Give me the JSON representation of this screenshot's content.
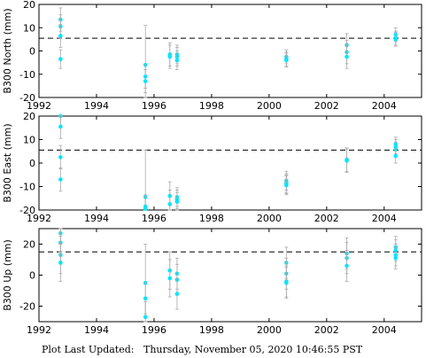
{
  "footer": {
    "label": "Plot Last Updated:",
    "value": "Thursday, November 05, 2020 10:46:55 PST"
  },
  "chart_data": [
    {
      "type": "scatter",
      "ylabel": "B300 North (mm)",
      "xlim": [
        1992,
        2005.3
      ],
      "ylim": [
        -20,
        20
      ],
      "yticks": [
        -20,
        -10,
        0,
        10,
        20
      ],
      "xticks": [
        1992,
        1994,
        1996,
        1998,
        2000,
        2002,
        2004
      ],
      "reference_line": 5.5,
      "grid": false,
      "series": [
        {
          "marker_color": "#00e5ff",
          "errorbar_color": "#aaaaaa",
          "points": [
            {
              "x": 1992.75,
              "y": 13.5,
              "err": 5
            },
            {
              "x": 1992.75,
              "y": 10.5,
              "err": 5
            },
            {
              "x": 1992.75,
              "y": 6.5,
              "err": 5
            },
            {
              "x": 1992.75,
              "y": -3.5,
              "err": 4
            },
            {
              "x": 1995.7,
              "y": -6,
              "err": 17
            },
            {
              "x": 1995.7,
              "y": -11,
              "err": 5
            },
            {
              "x": 1995.7,
              "y": -13,
              "err": 5
            },
            {
              "x": 1996.55,
              "y": -1.5,
              "err": 5
            },
            {
              "x": 1996.55,
              "y": -2.5,
              "err": 5
            },
            {
              "x": 1996.8,
              "y": -1.5,
              "err": 4
            },
            {
              "x": 1996.8,
              "y": -2.5,
              "err": 4
            },
            {
              "x": 1996.8,
              "y": -4,
              "err": 4
            },
            {
              "x": 2000.6,
              "y": -2.5,
              "err": 3
            },
            {
              "x": 2000.6,
              "y": -3.5,
              "err": 3
            },
            {
              "x": 2000.6,
              "y": -4,
              "err": 3
            },
            {
              "x": 2002.7,
              "y": 2.5,
              "err": 5
            },
            {
              "x": 2002.7,
              "y": -0.5,
              "err": 5
            },
            {
              "x": 2002.7,
              "y": -2.5,
              "err": 5
            },
            {
              "x": 2004.4,
              "y": 7,
              "err": 3
            },
            {
              "x": 2004.4,
              "y": 5.5,
              "err": 3
            },
            {
              "x": 2004.4,
              "y": 5,
              "err": 3
            }
          ]
        }
      ]
    },
    {
      "type": "scatter",
      "ylabel": "B300 East (mm)",
      "xlim": [
        1992,
        2005.3
      ],
      "ylim": [
        -20,
        20
      ],
      "yticks": [
        -20,
        -10,
        0,
        10,
        20
      ],
      "xticks": [
        1992,
        1994,
        1996,
        1998,
        2000,
        2002,
        2004
      ],
      "reference_line": 5.5,
      "grid": false,
      "series": [
        {
          "marker_color": "#00e5ff",
          "errorbar_color": "#aaaaaa",
          "points": [
            {
              "x": 1992.75,
              "y": 20,
              "err": 5
            },
            {
              "x": 1992.75,
              "y": 15.5,
              "err": 5
            },
            {
              "x": 1992.75,
              "y": 2.5,
              "err": 5
            },
            {
              "x": 1992.75,
              "y": -7,
              "err": 5
            },
            {
              "x": 1995.7,
              "y": -14.5,
              "err": 20
            },
            {
              "x": 1995.7,
              "y": -18.5,
              "err": 5
            },
            {
              "x": 1995.7,
              "y": -19.5,
              "err": 5
            },
            {
              "x": 1996.55,
              "y": -14,
              "err": 6
            },
            {
              "x": 1996.55,
              "y": -17.5,
              "err": 6
            },
            {
              "x": 1996.8,
              "y": -14.5,
              "err": 4
            },
            {
              "x": 1996.8,
              "y": -15.5,
              "err": 4
            },
            {
              "x": 1996.8,
              "y": -16.5,
              "err": 4
            },
            {
              "x": 2000.6,
              "y": -7.5,
              "err": 4
            },
            {
              "x": 2000.6,
              "y": -8.5,
              "err": 4
            },
            {
              "x": 2000.6,
              "y": -9,
              "err": 4
            },
            {
              "x": 2000.6,
              "y": -9.5,
              "err": 4
            },
            {
              "x": 2002.7,
              "y": 1.5,
              "err": 5
            },
            {
              "x": 2002.7,
              "y": 1,
              "err": 5
            },
            {
              "x": 2004.4,
              "y": 8,
              "err": 3
            },
            {
              "x": 2004.4,
              "y": 7,
              "err": 3
            },
            {
              "x": 2004.4,
              "y": 6,
              "err": 3
            },
            {
              "x": 2004.4,
              "y": 3,
              "err": 3
            }
          ]
        }
      ]
    },
    {
      "type": "scatter",
      "ylabel": "B300 Up (mm)",
      "xlim": [
        1992,
        2005.3
      ],
      "ylim": [
        -30,
        30
      ],
      "yticks": [
        -20,
        0,
        20
      ],
      "xticks": [
        1992,
        1994,
        1996,
        1998,
        2000,
        2002,
        2004
      ],
      "reference_line": 15,
      "grid": false,
      "series": [
        {
          "marker_color": "#00e5ff",
          "errorbar_color": "#aaaaaa",
          "points": [
            {
              "x": 1992.75,
              "y": 27,
              "err": 12
            },
            {
              "x": 1992.75,
              "y": 21,
              "err": 12
            },
            {
              "x": 1992.75,
              "y": 13,
              "err": 12
            },
            {
              "x": 1992.75,
              "y": 8,
              "err": 12
            },
            {
              "x": 1995.7,
              "y": -5,
              "err": 25
            },
            {
              "x": 1995.7,
              "y": -15,
              "err": 10
            },
            {
              "x": 1995.7,
              "y": -27,
              "err": 10
            },
            {
              "x": 1996.55,
              "y": 3,
              "err": 12
            },
            {
              "x": 1996.55,
              "y": -2,
              "err": 12
            },
            {
              "x": 1996.8,
              "y": 1,
              "err": 10
            },
            {
              "x": 1996.8,
              "y": -3,
              "err": 10
            },
            {
              "x": 1996.8,
              "y": -12,
              "err": 10
            },
            {
              "x": 2000.6,
              "y": 8,
              "err": 10
            },
            {
              "x": 2000.6,
              "y": 1,
              "err": 10
            },
            {
              "x": 2000.6,
              "y": -4,
              "err": 10
            },
            {
              "x": 2000.6,
              "y": -5,
              "err": 10
            },
            {
              "x": 2002.7,
              "y": 14,
              "err": 10
            },
            {
              "x": 2002.7,
              "y": 11,
              "err": 10
            },
            {
              "x": 2002.7,
              "y": 6,
              "err": 10
            },
            {
              "x": 2004.4,
              "y": 18,
              "err": 7
            },
            {
              "x": 2004.4,
              "y": 16,
              "err": 7
            },
            {
              "x": 2004.4,
              "y": 13,
              "err": 7
            },
            {
              "x": 2004.4,
              "y": 11,
              "err": 7
            }
          ]
        }
      ]
    }
  ]
}
